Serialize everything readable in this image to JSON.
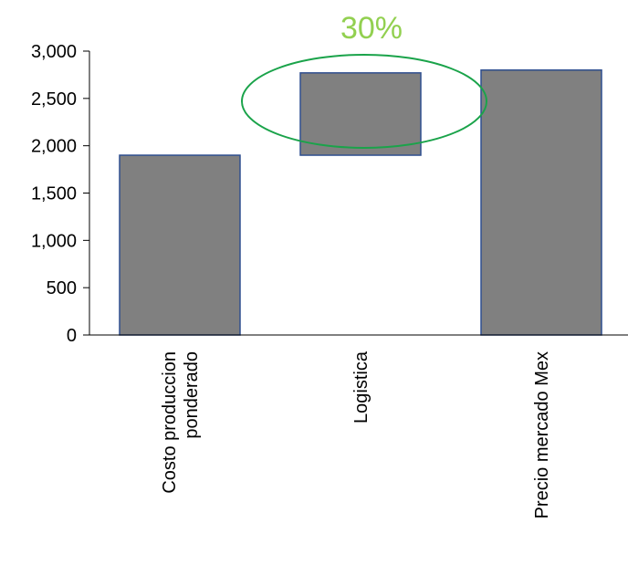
{
  "chart_data": {
    "type": "bar",
    "variant": "waterfall",
    "categories": [
      [
        "Costo produccion",
        "ponderado"
      ],
      [
        "Logistica"
      ],
      [
        "Precio mercado Mex"
      ]
    ],
    "bars": [
      {
        "base": 0,
        "top": 1900
      },
      {
        "base": 1900,
        "top": 2770
      },
      {
        "base": 0,
        "top": 2800
      }
    ],
    "ylim": [
      0,
      3000
    ],
    "yticks": [
      0,
      500,
      1000,
      1500,
      2000,
      2500,
      3000
    ],
    "ytick_labels": [
      "0",
      "500",
      "1,000",
      "1,500",
      "2,000",
      "2,500",
      "3,000"
    ],
    "grid": false,
    "title": "",
    "xlabel": "",
    "ylabel": "",
    "annotation": {
      "text": "30%",
      "target_category": 1
    },
    "colors": {
      "bar_fill": "#808080",
      "bar_stroke": "#2f4f8f",
      "axis": "#000000",
      "annotation_text": "#92d050",
      "annotation_ellipse": "#1aa34a"
    }
  }
}
